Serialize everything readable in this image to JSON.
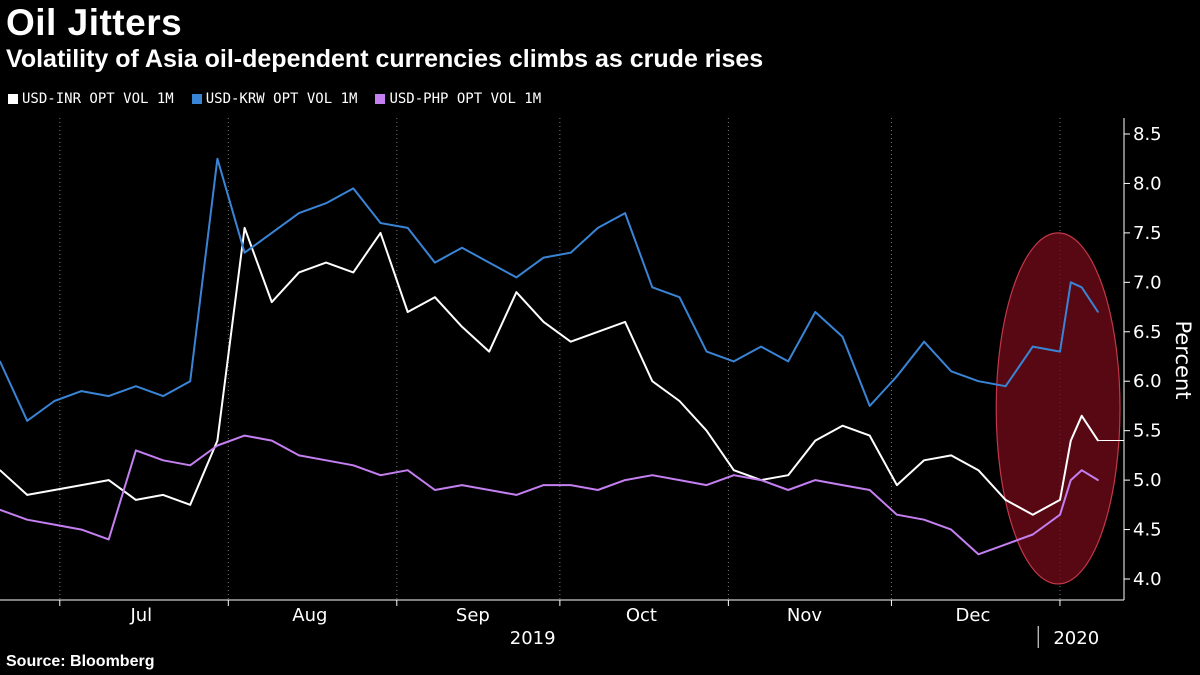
{
  "header": {
    "title": "Oil Jitters",
    "subtitle": "Volatility of Asia oil-dependent currencies climbs as crude rises"
  },
  "footer": {
    "source": "Source: Bloomberg"
  },
  "chart_data": {
    "type": "line",
    "title": "Oil Jitters",
    "subtitle": "Volatility of Asia oil-dependent currencies climbs as crude rises",
    "ylabel": "Percent",
    "ylim": [
      4.0,
      8.5
    ],
    "yticks": [
      "8.5",
      "8.0",
      "7.5",
      "7.0",
      "6.5",
      "6.0",
      "5.5",
      "5.0",
      "4.5",
      "4.0"
    ],
    "xlim": [
      "2019-06-20",
      "2020-01-08"
    ],
    "x_month_labels": [
      {
        "label": "Jul",
        "date": "2019-07-16"
      },
      {
        "label": "Aug",
        "date": "2019-08-16"
      },
      {
        "label": "Sep",
        "date": "2019-09-15"
      },
      {
        "label": "Oct",
        "date": "2019-10-16"
      },
      {
        "label": "Nov",
        "date": "2019-11-15"
      },
      {
        "label": "Dec",
        "date": "2019-12-16"
      }
    ],
    "x_month_boundaries": [
      "2019-07-01",
      "2019-08-01",
      "2019-09-01",
      "2019-10-01",
      "2019-11-01",
      "2019-12-01",
      "2020-01-01"
    ],
    "x_year_labels": [
      {
        "label": "2019",
        "date": "2019-09-26"
      },
      {
        "label": "2020",
        "date": "2020-01-04"
      }
    ],
    "year_divider": "2019-12-28",
    "legend_position": "top-left",
    "grid": "vertical dotted",
    "highlight": {
      "shape": "ellipse",
      "color": "#6b0a16",
      "x_range": [
        "2019-12-28",
        "2020-01-08"
      ],
      "y_range": [
        3.95,
        7.5
      ]
    },
    "x": [
      "2019-06-20",
      "2019-06-25",
      "2019-06-30",
      "2019-07-05",
      "2019-07-10",
      "2019-07-15",
      "2019-07-20",
      "2019-07-25",
      "2019-07-30",
      "2019-08-04",
      "2019-08-09",
      "2019-08-14",
      "2019-08-19",
      "2019-08-24",
      "2019-08-29",
      "2019-09-03",
      "2019-09-08",
      "2019-09-13",
      "2019-09-18",
      "2019-09-23",
      "2019-09-28",
      "2019-10-03",
      "2019-10-08",
      "2019-10-13",
      "2019-10-18",
      "2019-10-23",
      "2019-10-28",
      "2019-11-02",
      "2019-11-07",
      "2019-11-12",
      "2019-11-17",
      "2019-11-22",
      "2019-11-27",
      "2019-12-02",
      "2019-12-07",
      "2019-12-12",
      "2019-12-17",
      "2019-12-22",
      "2019-12-27",
      "2020-01-01",
      "2020-01-03",
      "2020-01-05",
      "2020-01-08"
    ],
    "series": [
      {
        "name": "USD-INR OPT VOL 1M",
        "color": "#ffffff",
        "values": [
          5.1,
          4.85,
          4.9,
          4.95,
          5.0,
          4.8,
          4.85,
          4.75,
          5.4,
          7.55,
          6.8,
          7.1,
          7.2,
          7.1,
          7.5,
          6.7,
          6.85,
          6.55,
          6.3,
          6.9,
          6.6,
          6.4,
          6.5,
          6.6,
          6.0,
          5.8,
          5.5,
          5.1,
          5.0,
          5.05,
          5.4,
          5.55,
          5.45,
          4.95,
          5.2,
          5.25,
          5.1,
          4.8,
          4.65,
          4.8,
          5.4,
          5.65,
          5.4
        ]
      },
      {
        "name": "USD-KRW OPT VOL 1M",
        "color": "#3a84d6",
        "values": [
          6.2,
          5.6,
          5.8,
          5.9,
          5.85,
          5.95,
          5.85,
          6.0,
          8.25,
          7.3,
          7.5,
          7.7,
          7.8,
          7.95,
          7.6,
          7.55,
          7.2,
          7.35,
          7.2,
          7.05,
          7.25,
          7.3,
          7.55,
          7.7,
          6.95,
          6.85,
          6.3,
          6.2,
          6.35,
          6.2,
          6.7,
          6.45,
          5.75,
          6.05,
          6.4,
          6.1,
          6.0,
          5.95,
          6.35,
          6.3,
          7.0,
          6.95,
          6.7
        ]
      },
      {
        "name": "USD-PHP OPT VOL 1M",
        "color": "#c47ff0",
        "values": [
          4.7,
          4.6,
          4.55,
          4.5,
          4.4,
          5.3,
          5.2,
          5.15,
          5.35,
          5.45,
          5.4,
          5.25,
          5.2,
          5.15,
          5.05,
          5.1,
          4.9,
          4.95,
          4.9,
          4.85,
          4.95,
          4.95,
          4.9,
          5.0,
          5.05,
          5.0,
          4.95,
          5.05,
          5.0,
          4.9,
          5.0,
          4.95,
          4.9,
          4.65,
          4.6,
          4.5,
          4.25,
          4.35,
          4.45,
          4.65,
          5.0,
          5.1,
          5.0
        ]
      }
    ]
  }
}
